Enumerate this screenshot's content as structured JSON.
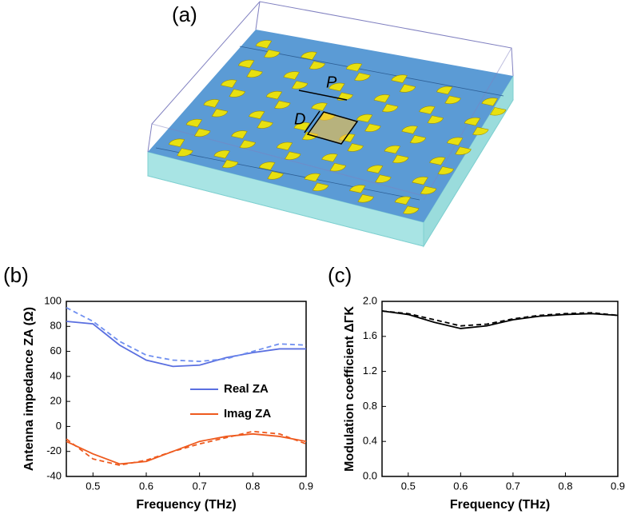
{
  "panels": {
    "a": "(a)",
    "b": "(b)",
    "c": "(c)"
  },
  "illustration": {
    "period_label": "P",
    "diameter_label": "D"
  },
  "chart_data": [
    {
      "type": "line",
      "x_label": "Frequency (THz)",
      "y_label": "Antenna impedance ZA (Ω)",
      "x": [
        0.45,
        0.5,
        0.55,
        0.6,
        0.65,
        0.7,
        0.75,
        0.8,
        0.85,
        0.9
      ],
      "xlim": [
        0.45,
        0.9
      ],
      "xticks": [
        0.5,
        0.6,
        0.7,
        0.8,
        0.9
      ],
      "ylim": [
        -40,
        100
      ],
      "yticks": [
        -40,
        -20,
        0,
        20,
        40,
        60,
        80,
        100
      ],
      "series": [
        {
          "name": "Real ZA",
          "color": "#5a6fe0",
          "dashed": false,
          "values": [
            84,
            82,
            65,
            53,
            48,
            49,
            55,
            59,
            62,
            62
          ]
        },
        {
          "color": "#6f8ff0",
          "dashed": true,
          "values": [
            95,
            84,
            68,
            57,
            53,
            52,
            54,
            60,
            66,
            65
          ]
        },
        {
          "name": "Imag ZA",
          "color": "#ee5a1e",
          "dashed": false,
          "values": [
            -12,
            -22,
            -30,
            -28,
            -20,
            -12,
            -8,
            -6,
            -8,
            -12
          ]
        },
        {
          "color": "#ee5a1e",
          "dashed": true,
          "values": [
            -10,
            -26,
            -31,
            -27,
            -20,
            -14,
            -9,
            -4,
            -6,
            -14
          ]
        }
      ]
    },
    {
      "type": "line",
      "x_label": "Frequency (THz)",
      "y_label": "Modulation coefficient ΔΓK",
      "x": [
        0.45,
        0.5,
        0.55,
        0.6,
        0.65,
        0.7,
        0.75,
        0.8,
        0.85,
        0.9
      ],
      "xlim": [
        0.45,
        0.9
      ],
      "xticks": [
        0.5,
        0.6,
        0.7,
        0.8,
        0.9
      ],
      "ylim": [
        0,
        2.0
      ],
      "yticks": [
        {
          "value": 0,
          "label": "0.0"
        },
        0.4,
        0.8,
        1.2,
        1.6,
        {
          "value": 2,
          "label": "2.0"
        }
      ],
      "series": [
        {
          "color": "#000000",
          "dashed": false,
          "values": [
            1.89,
            1.85,
            1.76,
            1.69,
            1.72,
            1.79,
            1.83,
            1.85,
            1.86,
            1.84
          ]
        },
        {
          "color": "#000000",
          "dashed": true,
          "values": [
            1.89,
            1.86,
            1.79,
            1.72,
            1.74,
            1.8,
            1.84,
            1.86,
            1.87,
            1.84
          ]
        }
      ]
    }
  ]
}
